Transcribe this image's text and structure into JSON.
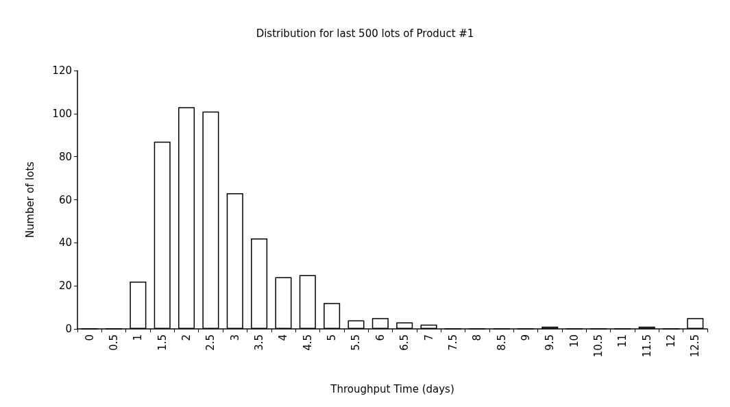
{
  "chart_data": {
    "type": "bar",
    "title": "Distribution for last 500 lots of Product #1",
    "xlabel": "Throughput Time (days)",
    "ylabel": "Number of lots",
    "categories": [
      "0",
      "0.5",
      "1",
      "1.5",
      "2",
      "2.5",
      "3",
      "3.5",
      "4",
      "4.5",
      "5",
      "5.5",
      "6",
      "6.5",
      "7",
      "7.5",
      "8",
      "8.5",
      "9",
      "9.5",
      "10",
      "10.5",
      "11",
      "11.5",
      "12",
      "12.5"
    ],
    "values": [
      0,
      0,
      22,
      87,
      103,
      101,
      63,
      42,
      24,
      25,
      12,
      4,
      5,
      3,
      2,
      0,
      0,
      0,
      0,
      1,
      0,
      0,
      0,
      1,
      0,
      5
    ],
    "color": "#ffffff",
    "ylim": [
      0,
      120
    ],
    "yticks": [
      0,
      20,
      40,
      60,
      80,
      100,
      120
    ],
    "grid": false
  }
}
